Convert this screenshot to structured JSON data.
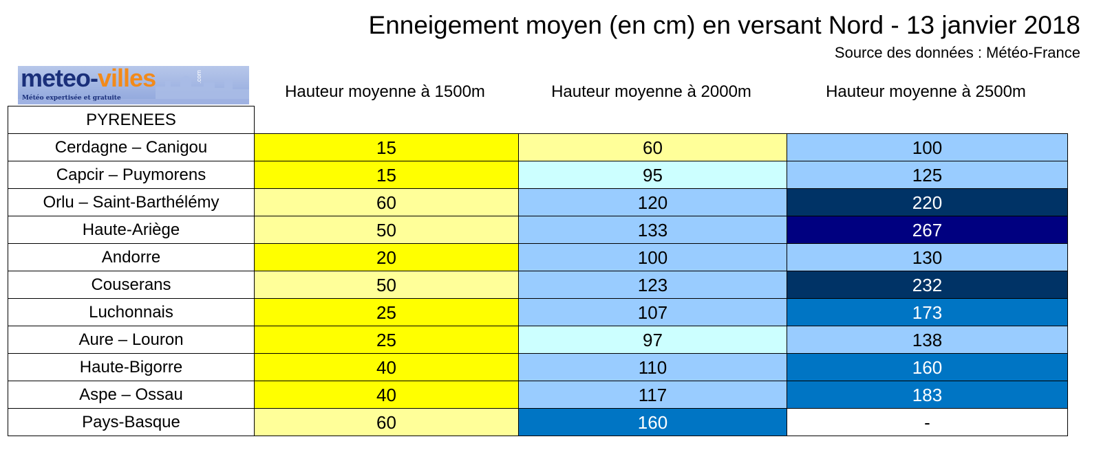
{
  "chart_data": {
    "type": "table",
    "title": "Enneigement moyen (en cm) en versant Nord - 13 janvier 2018",
    "subtitle": "Source des données : Météo-France",
    "row_header": "PYRENEES",
    "columns": [
      "Hauteur moyenne à 1500m",
      "Hauteur moyenne à 2000m",
      "Hauteur moyenne à 2500m"
    ],
    "rows": [
      {
        "name": "Cerdagne – Canigou",
        "values": [
          "15",
          "60",
          "100"
        ],
        "colors": [
          "#ffff00",
          "#ffff99",
          "#99ccff"
        ],
        "text_colors": [
          "#000000",
          "#000000",
          "#000000"
        ]
      },
      {
        "name": "Capcir – Puymorens",
        "values": [
          "15",
          "95",
          "125"
        ],
        "colors": [
          "#ffff00",
          "#ccffff",
          "#99ccff"
        ],
        "text_colors": [
          "#000000",
          "#000000",
          "#000000"
        ]
      },
      {
        "name": "Orlu – Saint-Barthélémy",
        "values": [
          "60",
          "120",
          "220"
        ],
        "colors": [
          "#ffff99",
          "#99ccff",
          "#003366"
        ],
        "text_colors": [
          "#000000",
          "#000000",
          "#ffffff"
        ]
      },
      {
        "name": "Haute-Ariège",
        "values": [
          "50",
          "133",
          "267"
        ],
        "colors": [
          "#ffff99",
          "#99ccff",
          "#000080"
        ],
        "text_colors": [
          "#000000",
          "#000000",
          "#ffffff"
        ]
      },
      {
        "name": "Andorre",
        "values": [
          "20",
          "100",
          "130"
        ],
        "colors": [
          "#ffff00",
          "#99ccff",
          "#99ccff"
        ],
        "text_colors": [
          "#000000",
          "#000000",
          "#000000"
        ]
      },
      {
        "name": "Couserans",
        "values": [
          "50",
          "123",
          "232"
        ],
        "colors": [
          "#ffff99",
          "#99ccff",
          "#003366"
        ],
        "text_colors": [
          "#000000",
          "#000000",
          "#ffffff"
        ]
      },
      {
        "name": "Luchonnais",
        "values": [
          "25",
          "107",
          "173"
        ],
        "colors": [
          "#ffff00",
          "#99ccff",
          "#0075c4"
        ],
        "text_colors": [
          "#000000",
          "#000000",
          "#ffffff"
        ]
      },
      {
        "name": "Aure – Louron",
        "values": [
          "25",
          "97",
          "138"
        ],
        "colors": [
          "#ffff00",
          "#ccffff",
          "#99ccff"
        ],
        "text_colors": [
          "#000000",
          "#000000",
          "#000000"
        ]
      },
      {
        "name": "Haute-Bigorre",
        "values": [
          "40",
          "110",
          "160"
        ],
        "colors": [
          "#ffff00",
          "#99ccff",
          "#0075c4"
        ],
        "text_colors": [
          "#000000",
          "#000000",
          "#ffffff"
        ]
      },
      {
        "name": "Aspe – Ossau",
        "values": [
          "40",
          "117",
          "183"
        ],
        "colors": [
          "#ffff00",
          "#99ccff",
          "#0075c4"
        ],
        "text_colors": [
          "#000000",
          "#000000",
          "#ffffff"
        ]
      },
      {
        "name": "Pays-Basque",
        "values": [
          "60",
          "160",
          "-"
        ],
        "colors": [
          "#ffff99",
          "#0075c4",
          "#ffffff"
        ],
        "text_colors": [
          "#000000",
          "#ffffff",
          "#000000"
        ]
      }
    ]
  },
  "logo": {
    "name_part1": "meteo-",
    "name_part2": "villes",
    "domain": ".com",
    "tagline": "Météo expertisée et gratuite"
  }
}
